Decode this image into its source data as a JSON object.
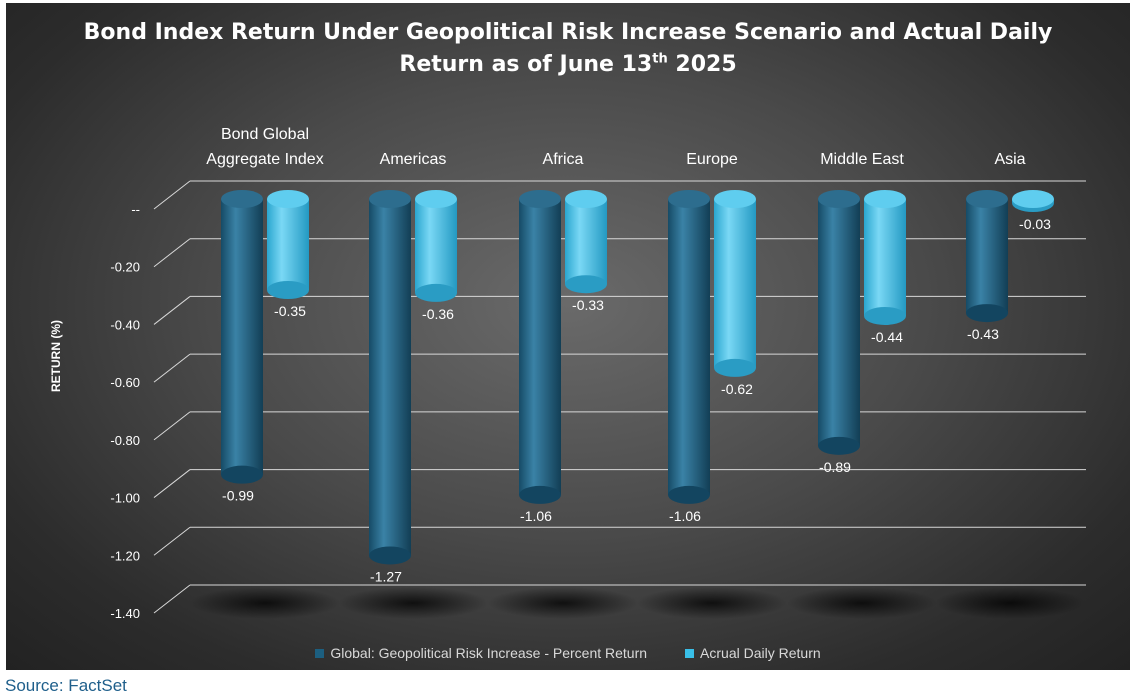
{
  "title": {
    "line1": "Bond Index Return Under Geopolitical Risk Increase Scenario and Actual Daily",
    "line2_prefix": "Return as of June 13",
    "line2_sup": "th",
    "line2_suffix": " 2025"
  },
  "source": "Source: FactSet",
  "colors": {
    "series1": "#1c5f80",
    "series2": "#39bfe8",
    "grid": "#d8d8d8",
    "text": "#ffffff"
  },
  "chart_data": {
    "type": "bar",
    "categories": [
      [
        "Bond Global",
        "Aggregate Index"
      ],
      [
        "Americas"
      ],
      [
        "Africa"
      ],
      [
        "Europe"
      ],
      [
        "Middle East"
      ],
      [
        "Asia"
      ]
    ],
    "series": [
      {
        "name": "Global: Geopolitical Risk Increase - Percent Return",
        "values": [
          -0.99,
          -1.27,
          -1.06,
          -1.06,
          -0.89,
          -0.43
        ],
        "labels": [
          "-0.99",
          "-1.27",
          "-1.06",
          "-1.06",
          "-0.89",
          "-0.43"
        ]
      },
      {
        "name": "Acrual Daily Return",
        "values": [
          -0.35,
          -0.36,
          -0.33,
          -0.62,
          -0.44,
          -0.03
        ],
        "labels": [
          "-0.35",
          "-0.36",
          "-0.33",
          "-0.62",
          "-0.44",
          "-0.03"
        ]
      }
    ],
    "ylabel": "RETURN (%)",
    "ylim": [
      -1.4,
      0
    ],
    "yticks": [
      0,
      -0.2,
      -0.4,
      -0.6,
      -0.8,
      -1.0,
      -1.2,
      -1.4
    ],
    "ytick_labels": [
      "--",
      "-0.20",
      "-0.40",
      "-0.60",
      "-0.80",
      "-1.00",
      "-1.20",
      "-1.40"
    ],
    "grid": true,
    "legend_position": "bottom",
    "categories_axis_position": "top"
  }
}
